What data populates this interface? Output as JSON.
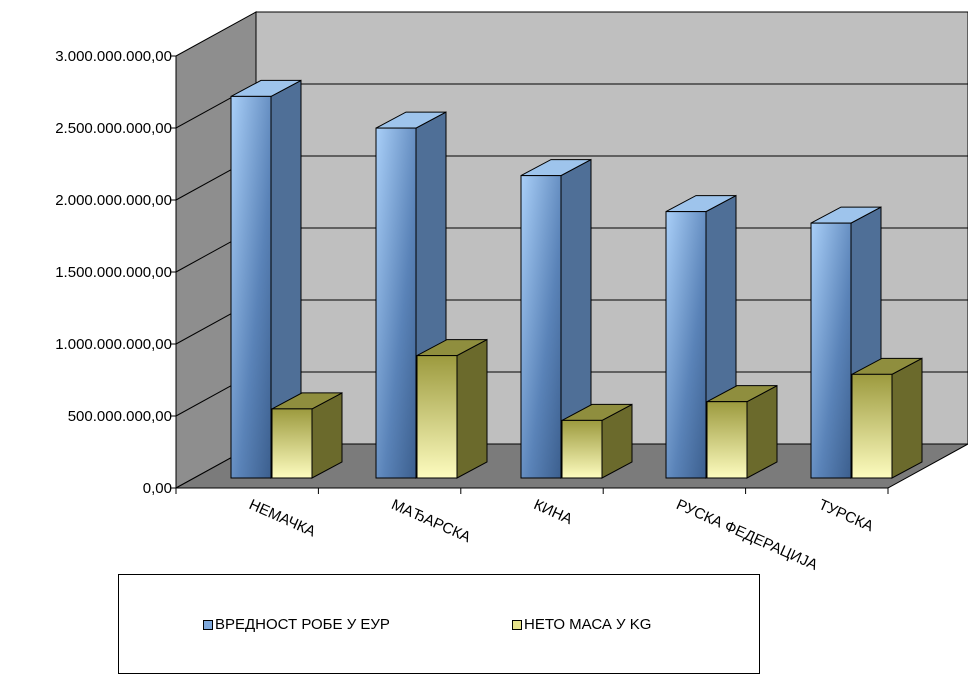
{
  "chart_data": {
    "type": "bar",
    "categories": [
      "НЕМАЧКА",
      "МАЂАРСКА",
      "КИНА",
      "РУСКА ФЕДЕРАЦИЈА",
      "ТУРСКА"
    ],
    "series": [
      {
        "name": "ВРЕДНОСТ РОБЕ У ЕУР",
        "values": [
          2650000000,
          2430000000,
          2100000000,
          1850000000,
          1770000000
        ],
        "color": "#7fa9dc"
      },
      {
        "name": "НЕТО МАСА У KG",
        "values": [
          480000000,
          850000000,
          400000000,
          530000000,
          720000000
        ],
        "color": "#e6e38c"
      }
    ],
    "ylim": [
      0,
      3000000000
    ],
    "yticks": [
      {
        "value": 0,
        "label": "0,00"
      },
      {
        "value": 500000000,
        "label": "500.000.000,00"
      },
      {
        "value": 1000000000,
        "label": "1.000.000.000,00"
      },
      {
        "value": 1500000000,
        "label": "1.500.000.000,00"
      },
      {
        "value": 2000000000,
        "label": "2.000.000.000,00"
      },
      {
        "value": 2500000000,
        "label": "2.500.000.000,00"
      },
      {
        "value": 3000000000,
        "label": "3.000.000.000,00"
      }
    ],
    "grid": true,
    "legend": "bottom",
    "chart_style": "3d-clustered-column"
  }
}
